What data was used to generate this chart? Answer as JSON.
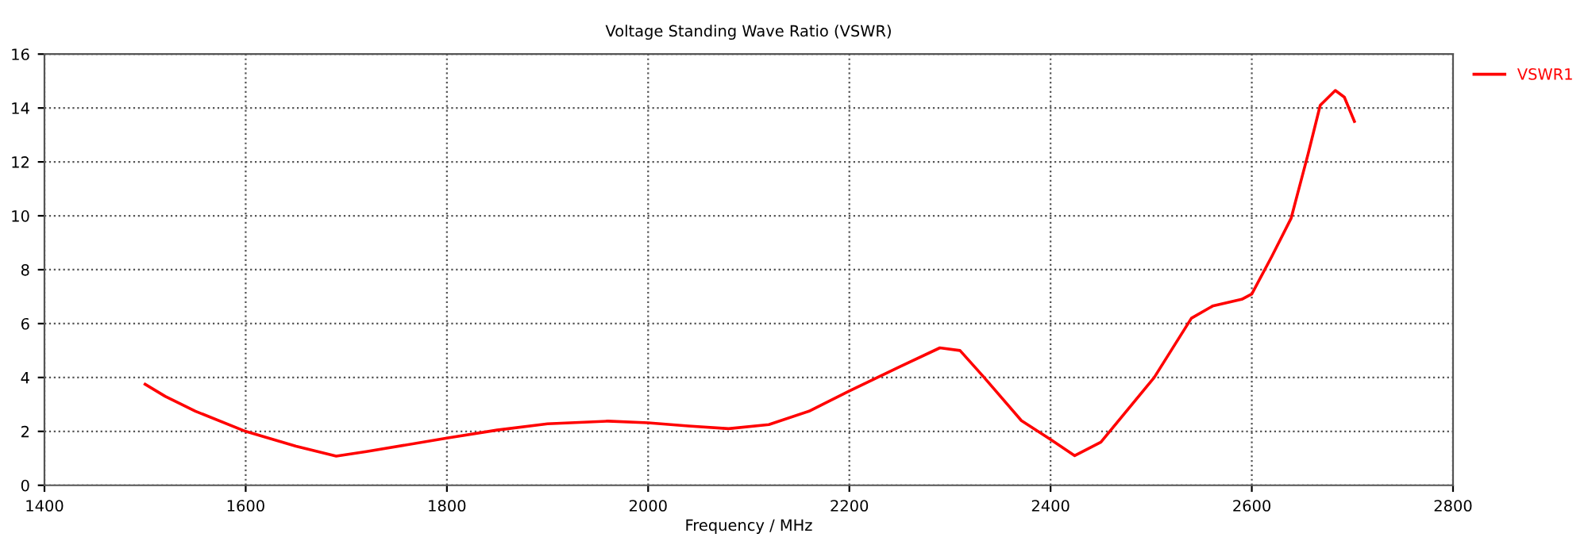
{
  "chart_data": {
    "type": "line",
    "title": "Voltage Standing Wave Ratio (VSWR)",
    "xlabel": "Frequency / MHz",
    "series": [
      {
        "name": "VSWR1",
        "color": "#ff0000",
        "x": [
          1500,
          1520,
          1550,
          1600,
          1650,
          1690,
          1720,
          1800,
          1850,
          1900,
          1960,
          2000,
          2040,
          2080,
          2120,
          2160,
          2200,
          2250,
          2290,
          2310,
          2334,
          2371,
          2400,
          2424,
          2450,
          2503,
          2540,
          2561,
          2590,
          2600,
          2620,
          2639,
          2656,
          2668,
          2683,
          2692,
          2702
        ],
        "values": [
          3.75,
          3.3,
          2.75,
          2.0,
          1.45,
          1.08,
          1.25,
          1.75,
          2.05,
          2.28,
          2.38,
          2.32,
          2.2,
          2.1,
          2.25,
          2.75,
          3.5,
          4.4,
          5.1,
          5.0,
          4.0,
          2.4,
          1.7,
          1.1,
          1.6,
          4.0,
          6.2,
          6.65,
          6.9,
          7.1,
          8.5,
          9.9,
          12.3,
          14.1,
          14.65,
          14.4,
          13.5
        ]
      }
    ],
    "xlim": [
      1400,
      2800
    ],
    "xticks": [
      1400,
      1600,
      1800,
      2000,
      2200,
      2400,
      2600,
      2800
    ],
    "ylim": [
      0,
      16
    ],
    "yticks": [
      0,
      2,
      4,
      6,
      8,
      10,
      12,
      14,
      16
    ],
    "grid": true,
    "legend": "right",
    "line_style": "solid",
    "marker": "none"
  }
}
